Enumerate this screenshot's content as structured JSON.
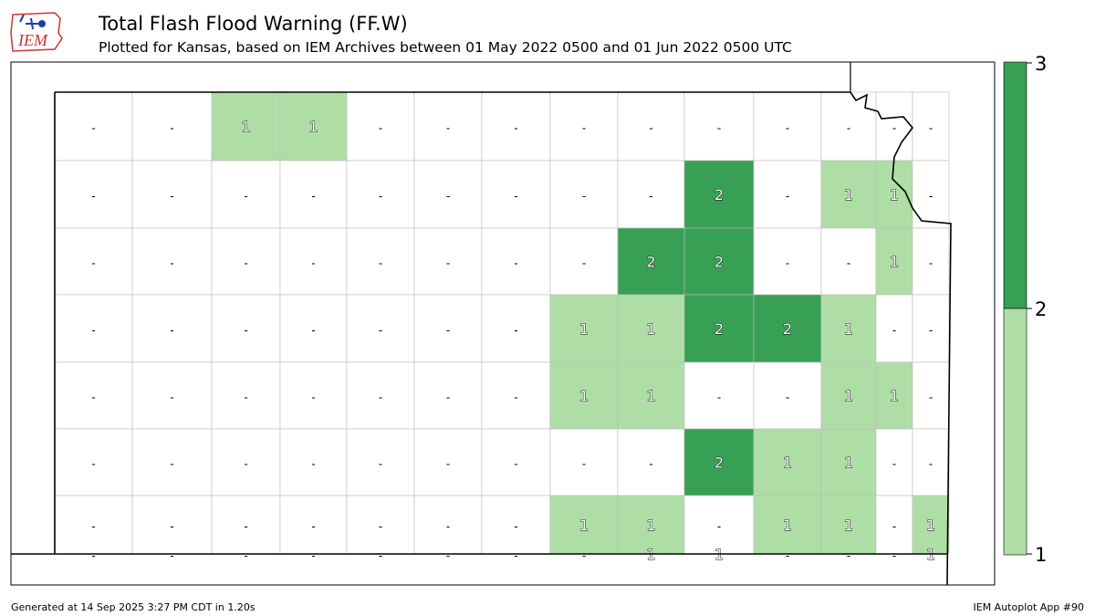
{
  "header": {
    "title": "Total Flash Flood Warning (FF.W)",
    "subtitle": "Plotted for Kansas, based on IEM Archives  between 01 May 2022 0500 and 01 Jun 2022 0500 UTC",
    "logo_text": "IEM"
  },
  "colors": {
    "level1": "#aedea5",
    "level2": "#37a054",
    "none": "#ffffff",
    "county_border": "#bbbbbb",
    "state_border": "#000000"
  },
  "colorbar": {
    "ticks": [
      "3",
      "2",
      "1"
    ]
  },
  "map_data": {
    "no_data_label": "-",
    "counties": [
      {
        "r": 0,
        "c": 0,
        "v": 0
      },
      {
        "r": 0,
        "c": 1,
        "v": 0
      },
      {
        "r": 0,
        "c": 2,
        "v": 1
      },
      {
        "r": 0,
        "c": 3,
        "v": 1
      },
      {
        "r": 0,
        "c": 4,
        "v": 0
      },
      {
        "r": 0,
        "c": 5,
        "v": 0
      },
      {
        "r": 0,
        "c": 6,
        "v": 0
      },
      {
        "r": 0,
        "c": 7,
        "v": 0
      },
      {
        "r": 0,
        "c": 8,
        "v": 0
      },
      {
        "r": 0,
        "c": 9,
        "v": 0
      },
      {
        "r": 0,
        "c": 10,
        "v": 0
      },
      {
        "r": 0,
        "c": 11,
        "v": 0
      },
      {
        "r": 0,
        "c": 12,
        "v": 0
      },
      {
        "r": 0,
        "c": 13,
        "v": 0
      },
      {
        "r": 1,
        "c": 0,
        "v": 0
      },
      {
        "r": 1,
        "c": 1,
        "v": 0
      },
      {
        "r": 1,
        "c": 2,
        "v": 0
      },
      {
        "r": 1,
        "c": 3,
        "v": 0
      },
      {
        "r": 1,
        "c": 4,
        "v": 0
      },
      {
        "r": 1,
        "c": 5,
        "v": 0
      },
      {
        "r": 1,
        "c": 6,
        "v": 0
      },
      {
        "r": 1,
        "c": 7,
        "v": 0
      },
      {
        "r": 1,
        "c": 8,
        "v": 0
      },
      {
        "r": 1,
        "c": 9,
        "v": 2
      },
      {
        "r": 1,
        "c": 10,
        "v": 0
      },
      {
        "r": 1,
        "c": 11,
        "v": 1
      },
      {
        "r": 1,
        "c": 12,
        "v": 1
      },
      {
        "r": 1,
        "c": 13,
        "v": 0
      },
      {
        "r": 2,
        "c": 0,
        "v": 0
      },
      {
        "r": 2,
        "c": 1,
        "v": 0
      },
      {
        "r": 2,
        "c": 2,
        "v": 0
      },
      {
        "r": 2,
        "c": 3,
        "v": 0
      },
      {
        "r": 2,
        "c": 4,
        "v": 0
      },
      {
        "r": 2,
        "c": 5,
        "v": 0
      },
      {
        "r": 2,
        "c": 6,
        "v": 0
      },
      {
        "r": 2,
        "c": 7,
        "v": 0
      },
      {
        "r": 2,
        "c": 8,
        "v": 2
      },
      {
        "r": 2,
        "c": 9,
        "v": 2
      },
      {
        "r": 2,
        "c": 10,
        "v": 0
      },
      {
        "r": 2,
        "c": 11,
        "v": 0
      },
      {
        "r": 2,
        "c": 12,
        "v": 1
      },
      {
        "r": 2,
        "c": 13,
        "v": 0
      },
      {
        "r": 3,
        "c": 0,
        "v": 0
      },
      {
        "r": 3,
        "c": 1,
        "v": 0
      },
      {
        "r": 3,
        "c": 2,
        "v": 0
      },
      {
        "r": 3,
        "c": 3,
        "v": 0
      },
      {
        "r": 3,
        "c": 4,
        "v": 0
      },
      {
        "r": 3,
        "c": 5,
        "v": 0
      },
      {
        "r": 3,
        "c": 6,
        "v": 0
      },
      {
        "r": 3,
        "c": 7,
        "v": 1
      },
      {
        "r": 3,
        "c": 8,
        "v": 1
      },
      {
        "r": 3,
        "c": 9,
        "v": 2
      },
      {
        "r": 3,
        "c": 10,
        "v": 2
      },
      {
        "r": 3,
        "c": 11,
        "v": 1
      },
      {
        "r": 3,
        "c": 12,
        "v": 0
      },
      {
        "r": 3,
        "c": 13,
        "v": 0
      },
      {
        "r": 4,
        "c": 0,
        "v": 0
      },
      {
        "r": 4,
        "c": 1,
        "v": 0
      },
      {
        "r": 4,
        "c": 2,
        "v": 0
      },
      {
        "r": 4,
        "c": 3,
        "v": 0
      },
      {
        "r": 4,
        "c": 4,
        "v": 0
      },
      {
        "r": 4,
        "c": 5,
        "v": 0
      },
      {
        "r": 4,
        "c": 6,
        "v": 0
      },
      {
        "r": 4,
        "c": 7,
        "v": 1
      },
      {
        "r": 4,
        "c": 8,
        "v": 1
      },
      {
        "r": 4,
        "c": 9,
        "v": 0
      },
      {
        "r": 4,
        "c": 10,
        "v": 0
      },
      {
        "r": 4,
        "c": 11,
        "v": 1
      },
      {
        "r": 4,
        "c": 12,
        "v": 1
      },
      {
        "r": 4,
        "c": 13,
        "v": 0
      },
      {
        "r": 5,
        "c": 0,
        "v": 0
      },
      {
        "r": 5,
        "c": 1,
        "v": 0
      },
      {
        "r": 5,
        "c": 2,
        "v": 0
      },
      {
        "r": 5,
        "c": 3,
        "v": 0
      },
      {
        "r": 5,
        "c": 4,
        "v": 0
      },
      {
        "r": 5,
        "c": 5,
        "v": 0
      },
      {
        "r": 5,
        "c": 6,
        "v": 0
      },
      {
        "r": 5,
        "c": 7,
        "v": 0
      },
      {
        "r": 5,
        "c": 8,
        "v": 0
      },
      {
        "r": 5,
        "c": 9,
        "v": 2
      },
      {
        "r": 5,
        "c": 10,
        "v": 1
      },
      {
        "r": 5,
        "c": 11,
        "v": 1
      },
      {
        "r": 5,
        "c": 12,
        "v": 0
      },
      {
        "r": 5,
        "c": 13,
        "v": 0
      },
      {
        "r": 6,
        "c": 0,
        "v": 0
      },
      {
        "r": 6,
        "c": 1,
        "v": 0
      },
      {
        "r": 6,
        "c": 2,
        "v": 0
      },
      {
        "r": 6,
        "c": 3,
        "v": 0
      },
      {
        "r": 6,
        "c": 4,
        "v": 0
      },
      {
        "r": 6,
        "c": 5,
        "v": 0
      },
      {
        "r": 6,
        "c": 6,
        "v": 0
      },
      {
        "r": 6,
        "c": 7,
        "v": 1
      },
      {
        "r": 6,
        "c": 8,
        "v": 1
      },
      {
        "r": 6,
        "c": 9,
        "v": 0
      },
      {
        "r": 6,
        "c": 10,
        "v": 1
      },
      {
        "r": 6,
        "c": 11,
        "v": 1
      },
      {
        "r": 6,
        "c": 12,
        "v": 0
      },
      {
        "r": 6,
        "c": 13,
        "v": 1
      },
      {
        "r": 7,
        "c": 0,
        "v": 0
      },
      {
        "r": 7,
        "c": 1,
        "v": 0
      },
      {
        "r": 7,
        "c": 2,
        "v": 0
      },
      {
        "r": 7,
        "c": 3,
        "v": 0
      },
      {
        "r": 7,
        "c": 4,
        "v": 0
      },
      {
        "r": 7,
        "c": 5,
        "v": 0
      },
      {
        "r": 7,
        "c": 6,
        "v": 0
      },
      {
        "r": 7,
        "c": 7,
        "v": 0
      },
      {
        "r": 7,
        "c": 8,
        "v": 1
      },
      {
        "r": 7,
        "c": 9,
        "v": 1
      },
      {
        "r": 7,
        "c": 10,
        "v": 0
      },
      {
        "r": 7,
        "c": 11,
        "v": 0
      },
      {
        "r": 7,
        "c": 12,
        "v": 0
      },
      {
        "r": 7,
        "c": 13,
        "v": 1
      }
    ]
  },
  "footer": {
    "generated": "Generated at 14 Sep 2025 3:27 PM CDT in 1.20s",
    "app": "IEM Autoplot App #90"
  }
}
